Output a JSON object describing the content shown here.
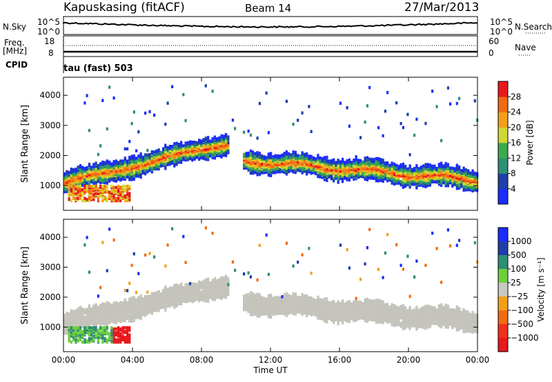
{
  "header": {
    "title": "Kapuskasing (fitACF)",
    "beam": "Beam 14",
    "date": "27/Mar/2013"
  },
  "side_labels": {
    "nsky": "N.Sky",
    "nsearch": "N.Search",
    "freq": "Freq.",
    "mhz": "[MHz]",
    "nave": "Nave",
    "cpid": "CPID",
    "cpid_value": "tau (fast) 503",
    "noise_left_top": "10^5",
    "noise_left_bottom": "10^0",
    "noise_right_top": "10^5",
    "noise_right_bottom": "10^0",
    "freq_top": "18",
    "freq_bottom": "8",
    "nave_top": "60",
    "nave_bottom": "0"
  },
  "chart_data": [
    {
      "type": "heatmap",
      "name": "power-panel",
      "ylabel": "Slant Range [km]",
      "x_ticks": [
        "00:00",
        "04:00",
        "08:00",
        "12:00",
        "16:00",
        "20:00",
        "00:00"
      ],
      "x_range_hours": [
        0,
        24
      ],
      "y_ticks": [
        1000,
        2000,
        3000,
        4000
      ],
      "y_range_km": [
        180,
        4600
      ],
      "colorbar": {
        "label": "Power [dB]",
        "ticks": [
          "4",
          "8",
          "12",
          "16",
          "20",
          "24",
          "28"
        ],
        "colors": [
          "#1a2cff",
          "#1f3fa8",
          "#2d8f73",
          "#3aaa4c",
          "#cfd832",
          "#f2a01a",
          "#f26b14",
          "#e8181b"
        ]
      },
      "features": [
        {
          "desc": "main echo band",
          "x_hours": [
            0,
            9.6
          ],
          "range_km": [
            1100,
            2600
          ],
          "power_db": 14
        },
        {
          "desc": "main echo band",
          "x_hours": [
            10.3,
            24
          ],
          "range_km": [
            1900,
            1200
          ],
          "power_db": 14
        },
        {
          "desc": "near range patch",
          "x_hours": [
            0.2,
            3.8
          ],
          "range_km": [
            600,
            1000
          ],
          "power_db": 24
        }
      ]
    },
    {
      "type": "heatmap",
      "name": "velocity-panel",
      "ylabel": "Slant Range [km]",
      "xlabel": "Time UT",
      "x_ticks": [
        "00:00",
        "04:00",
        "08:00",
        "12:00",
        "16:00",
        "20:00",
        "00:00"
      ],
      "x_range_hours": [
        0,
        24
      ],
      "y_ticks": [
        1000,
        2000,
        3000,
        4000
      ],
      "y_range_km": [
        180,
        4600
      ],
      "colorbar": {
        "label": "Velocity [m s⁻¹]",
        "ticks": [
          "1000",
          "500",
          "100",
          "25",
          "−25",
          "−100",
          "−500",
          "−1000"
        ],
        "colors": [
          "#1a2cff",
          "#1f3fa8",
          "#2d8f73",
          "#6fcf3a",
          "#c8c8c2",
          "#f2a01a",
          "#f26b14",
          "#f2301a",
          "#e8181b"
        ]
      },
      "ground_scatter_color": "#c4c4bc"
    }
  ]
}
